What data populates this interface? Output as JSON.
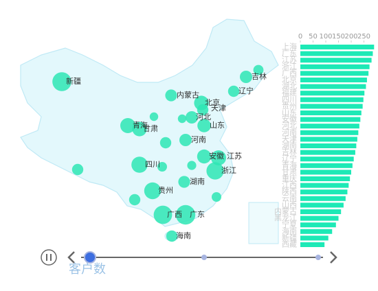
{
  "chart_data": {
    "type": "map-bar",
    "legend_text": "客户数",
    "bubble_color": "#2ee6b4",
    "points": [
      {
        "name": "新疆",
        "value": 270
      },
      {
        "name": "内蒙古",
        "value": 140
      },
      {
        "name": "吉林",
        "value": 150
      },
      {
        "name": "辽宁",
        "value": 130
      },
      {
        "name": "北京",
        "value": 190
      },
      {
        "name": "天津",
        "value": 130
      },
      {
        "name": "河北",
        "value": 150
      },
      {
        "name": "山东",
        "value": 170
      },
      {
        "name": "青海",
        "value": 200
      },
      {
        "name": "甘肃",
        "value": 190
      },
      {
        "name": "河南",
        "value": 150
      },
      {
        "name": "安徽",
        "value": 180
      },
      {
        "name": "江苏",
        "value": 200
      },
      {
        "name": "四川",
        "value": 220
      },
      {
        "name": "浙江",
        "value": 240
      },
      {
        "name": "湖南",
        "value": 140
      },
      {
        "name": "贵州",
        "value": 230
      },
      {
        "name": "广西",
        "value": 260
      },
      {
        "name": "广东",
        "value": 280
      },
      {
        "name": "海南",
        "value": 130
      },
      {
        "name": null,
        "value": 130
      },
      {
        "name": null,
        "value": 130
      },
      {
        "name": null,
        "value": 130
      },
      {
        "name": null,
        "value": 100
      },
      {
        "name": null,
        "value": 100
      },
      {
        "name": null,
        "value": 90
      },
      {
        "name": null,
        "value": 80
      },
      {
        "name": null,
        "value": 80
      },
      {
        "name": null,
        "value": 110
      }
    ],
    "bar": {
      "color": "#1de9b6",
      "categories": [
        "上海",
        "广东",
        "江苏",
        "浙江",
        "广西",
        "北京",
        "湖北",
        "福建",
        "四川",
        "贵州",
        "山东",
        "安徽",
        "河北",
        "河南",
        "天津",
        "湖南",
        "吉林",
        "辽宁",
        "青海",
        "甘肃",
        "重庆",
        "江西",
        "陕西",
        "云南",
        "山西",
        "内蒙古",
        "黑龙江",
        "宁夏",
        "海南",
        "新疆",
        "西藏"
      ],
      "values": [
        290,
        285,
        280,
        272,
        268,
        262,
        258,
        252,
        248,
        245,
        240,
        236,
        232,
        228,
        224,
        220,
        216,
        210,
        205,
        200,
        195,
        190,
        185,
        178,
        170,
        160,
        150,
        140,
        125,
        110,
        95
      ],
      "xlim": [
        0,
        300
      ],
      "xticks": [
        0,
        50,
        100,
        150,
        200,
        250
      ]
    }
  }
}
